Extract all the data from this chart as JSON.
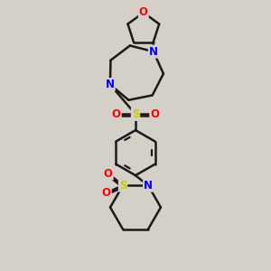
{
  "bg_color": "#d4d0c8",
  "bond_color": "#1a1a1a",
  "N_color": "#0000ff",
  "O_color": "#ff0000",
  "S_color": "#cccc00",
  "bond_width": 1.8,
  "font_size": 8.5,
  "fig_w": 3.0,
  "fig_h": 3.0,
  "dpi": 100,
  "xlim": [
    -2.2,
    2.2
  ],
  "ylim": [
    -5.5,
    4.5
  ]
}
